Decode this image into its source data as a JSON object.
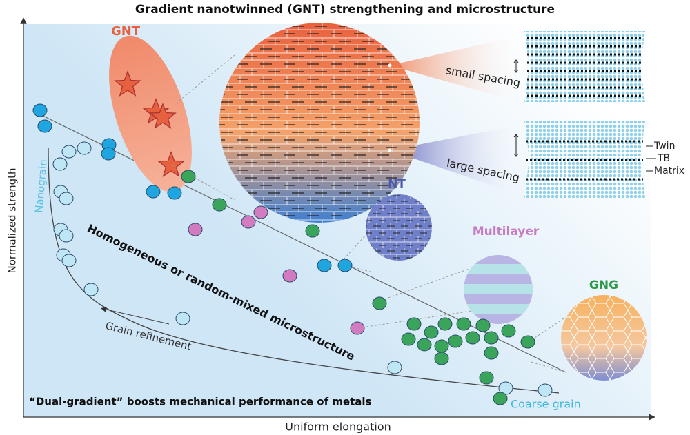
{
  "title": "Gradient nanotwinned (GNT) strengthening and microstructure",
  "axes": {
    "y_label": "Normalized strength",
    "x_label": "Uniform elongation"
  },
  "labels": {
    "gnt": "GNT",
    "small_spacing": "small spacing",
    "large_spacing": "large spacing",
    "twin": "Twin",
    "tb": "TB",
    "matrix": "Matrix",
    "nt": "NT",
    "multilayer": "Multilayer",
    "gng": "GNG",
    "nanograin": "Nanograin",
    "homogeneous": "Homogeneous or random-mixed microstructure",
    "grain_refinement": "Grain refinement",
    "coarse_grain": "Coarse grain"
  },
  "caption": "“Dual-gradient” boosts mechanical performance of metals"
}
